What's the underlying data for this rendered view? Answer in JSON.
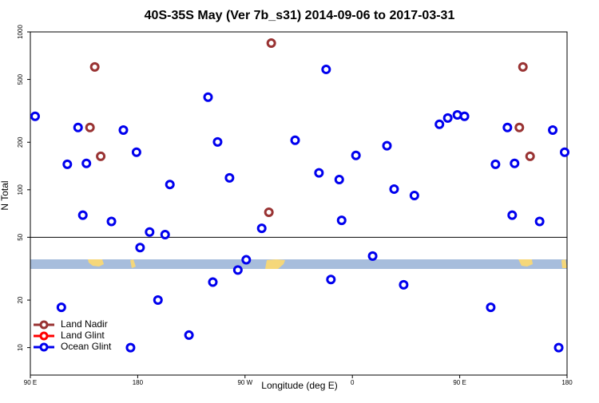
{
  "chart_data": {
    "type": "scatter",
    "title": "40S-35S May (Ver 7b_s31)   2014-09-06 to 2017-03-31",
    "x_label": "Longitude (deg E)",
    "y_label": "N Total",
    "xlim": [
      90,
      540
    ],
    "xticks": [
      {
        "value": 90,
        "label": "90 E"
      },
      {
        "value": 180,
        "label": "180"
      },
      {
        "value": 270,
        "label": "90 W"
      },
      {
        "value": 360,
        "label": "0"
      },
      {
        "value": 450,
        "label": "90 E"
      },
      {
        "value": 540,
        "label": "180"
      }
    ],
    "ylim": [
      6.7,
      1000
    ],
    "yticks": [
      10,
      20,
      50,
      100,
      200,
      500,
      1000
    ],
    "log_y": true,
    "reference_line": 50,
    "legend": "bottom-left",
    "series": [
      {
        "name": "Land Nadir",
        "color": "#993333",
        "x": [
          144,
          140,
          149,
          292,
          290,
          503,
          500,
          509
        ],
        "values": [
          600,
          248,
          163,
          849,
          72,
          600,
          248,
          163
        ]
      },
      {
        "name": "Land Glint",
        "color": "#ff0000",
        "x": [],
        "values": []
      },
      {
        "name": "Ocean Glint",
        "color": "#0000ee",
        "x": [
          94,
          116,
          121,
          130,
          134,
          137,
          158,
          168,
          174,
          179,
          182,
          190,
          197,
          203,
          207,
          223,
          239,
          243,
          247,
          257,
          264,
          271,
          284,
          312,
          332,
          338,
          342,
          349,
          351,
          363,
          377,
          389,
          395,
          403,
          412,
          433,
          440,
          448,
          454,
          476,
          480,
          490,
          494,
          496,
          517,
          528,
          533,
          538
        ],
        "values": [
          292,
          18,
          145,
          248,
          69,
          147,
          63,
          239,
          10,
          173,
          43,
          54,
          20,
          52,
          108,
          12,
          386,
          26,
          201,
          119,
          31,
          36,
          57,
          206,
          128,
          579,
          27,
          116,
          64,
          165,
          38,
          190,
          101,
          25,
          92,
          260,
          285,
          298,
          292,
          18,
          145,
          248,
          69,
          147,
          63,
          239,
          10,
          173
        ]
      }
    ]
  }
}
